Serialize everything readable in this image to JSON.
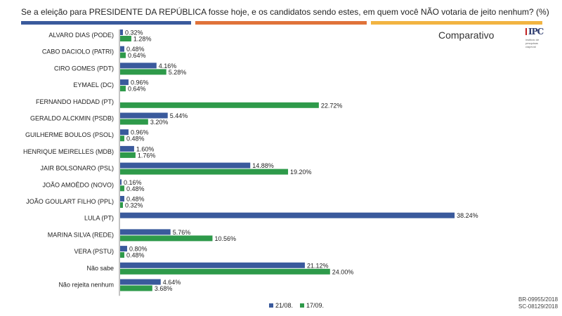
{
  "title": "Se a eleição para PRESIDENTE DA REPÚBLICA fosse hoje, e os candidatos sendo estes, em quem você NÃO votaria de jeito nenhum?  (%)",
  "subtitle": "Comparativo",
  "logo": {
    "text": "IPC",
    "small": "instituto de pesquisas ciapeval"
  },
  "footer": [
    "BR-09955/2018",
    "SC-08129/2018"
  ],
  "colors": {
    "series1": "#3a5a9c",
    "series2": "#2e9a4a"
  },
  "chart_data": {
    "type": "bar",
    "orientation": "horizontal",
    "title": "Se a eleição para PRESIDENTE DA REPÚBLICA fosse hoje, e os candidatos sendo estes, em quem você NÃO votaria de jeito nenhum?  (%)",
    "categories": [
      "ALVARO DIAS (PODE)",
      "CABO DACIOLO (PATRI)",
      "CIRO GOMES (PDT)",
      "EYMAEL (DC)",
      "FERNANDO HADDAD (PT)",
      "GERALDO ALCKMIN (PSDB)",
      "GUILHERME BOULOS (PSOL)",
      "HENRIQUE MEIRELLES (MDB)",
      "JAIR BOLSONARO (PSL)",
      "JOÃO AMOÊDO (NOVO)",
      "JOÃO GOULART FILHO (PPL)",
      "LULA (PT)",
      "MARINA SILVA (REDE)",
      "VERA (PSTU)",
      "Não sabe",
      "Não rejeita nenhum"
    ],
    "series": [
      {
        "name": "21/08.",
        "values": [
          0.32,
          0.48,
          4.16,
          0.96,
          null,
          5.44,
          0.96,
          1.6,
          14.88,
          0.16,
          0.48,
          38.24,
          5.76,
          0.8,
          21.12,
          4.64
        ],
        "labels": [
          "0.32%",
          "0.48%",
          "4.16%",
          "0.96%",
          "",
          "5.44%",
          "0.96%",
          "1.60%",
          "14.88%",
          "0.16%",
          "0.48%",
          "38.24%",
          "5.76%",
          "0.80%",
          "21.12%",
          "4.64%"
        ]
      },
      {
        "name": "17/09.",
        "values": [
          1.28,
          0.64,
          5.28,
          0.64,
          22.72,
          3.2,
          0.48,
          1.76,
          19.2,
          0.48,
          0.32,
          null,
          10.56,
          0.48,
          24.0,
          3.68
        ],
        "labels": [
          "1.28%",
          "0.64%",
          "5.28%",
          "0.64%",
          "22.72%",
          "3.20%",
          "0.48%",
          "1.76%",
          "19.20%",
          "0.48%",
          "0.32%",
          "",
          "10.56%",
          "0.48%",
          "24.00%",
          "3.68%"
        ]
      }
    ],
    "legend_position": "bottom",
    "grid": false
  }
}
